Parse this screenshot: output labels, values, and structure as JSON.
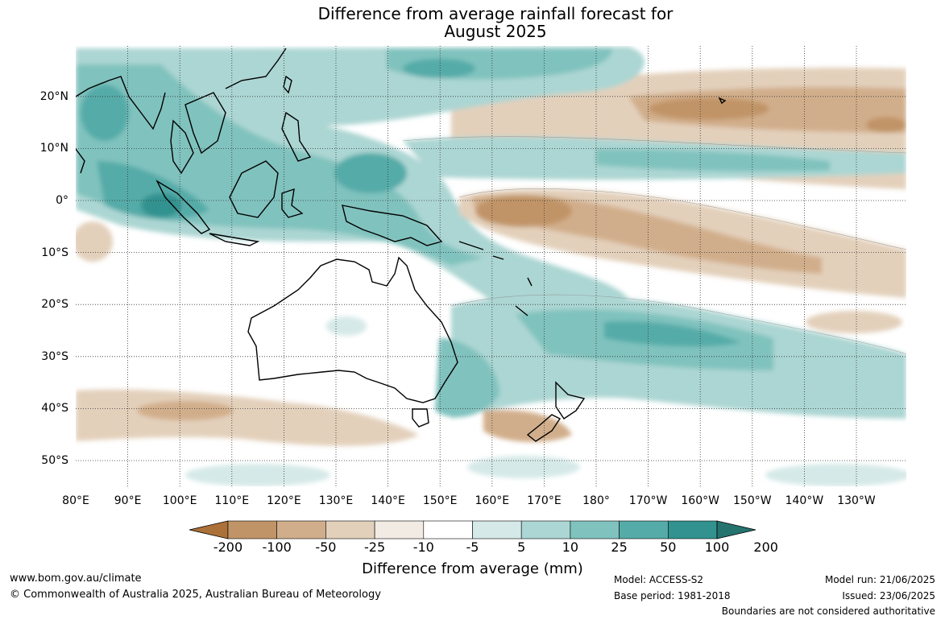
{
  "title_line1": "Difference from average rainfall forecast for",
  "title_line2": "August 2025",
  "lon_labels": [
    "80°E",
    "90°E",
    "100°E",
    "110°E",
    "120°E",
    "130°E",
    "140°E",
    "150°E",
    "160°E",
    "170°E",
    "180°",
    "170°W",
    "160°W",
    "150°W",
    "140°W",
    "130°W"
  ],
  "lat_labels": [
    "20°N",
    "10°N",
    "0°",
    "10°S",
    "20°S",
    "30°S",
    "40°S",
    "50°S"
  ],
  "colorbar": {
    "title": "Difference from average (mm)",
    "ticks": [
      "-200",
      "-100",
      "-50",
      "-25",
      "-10",
      "-5",
      "5",
      "10",
      "25",
      "50",
      "100",
      "200"
    ],
    "colors": [
      "#ab7138",
      "#c19467",
      "#d1ae8b",
      "#e3d0bb",
      "#f1ebe3",
      "#ffffff",
      "#d5e9e8",
      "#acd6d3",
      "#80c2be",
      "#55aba8",
      "#31928f",
      "#24736f"
    ]
  },
  "footer": {
    "url": "www.bom.gov.au/climate",
    "copyright": "© Commonwealth of Australia 2025, Australian Bureau of Meteorology",
    "model": "Model: ACCESS-S2",
    "base_period": "Base period: 1981-2018",
    "model_run": "Model run: 21/06/2025",
    "issued": "Issued: 23/06/2025",
    "disclaimer": "Boundaries are not considered authoritative"
  }
}
